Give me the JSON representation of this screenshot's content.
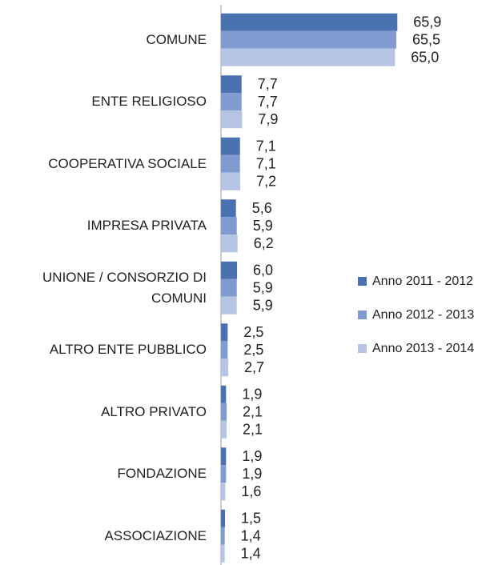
{
  "chart_data": {
    "type": "hbar",
    "categories": [
      "COMUNE",
      "ENTE RELIGIOSO",
      "COOPERATIVA SOCIALE",
      "IMPRESA PRIVATA",
      "UNIONE / CONSORZIO DI COMUNI",
      "ALTRO ENTE PUBBLICO",
      "ALTRO PRIVATO",
      "FONDAZIONE",
      "ASSOCIAZIONE"
    ],
    "series": [
      {
        "name": "Anno 2011 - 2012",
        "color": "#4a72b0",
        "values": [
          65.9,
          7.7,
          7.1,
          5.6,
          6.0,
          2.5,
          1.9,
          1.9,
          1.5
        ],
        "value_labels": [
          "65,9",
          "7,7",
          "7,1",
          "5,6",
          "6,0",
          "2,5",
          "1,9",
          "1,9",
          "1,5"
        ]
      },
      {
        "name": "Anno 2012 - 2013",
        "color": "#7f9bd0",
        "values": [
          65.5,
          7.7,
          7.1,
          5.9,
          5.9,
          2.5,
          2.1,
          1.9,
          1.4
        ],
        "value_labels": [
          "65,5",
          "7,7",
          "7,1",
          "5,9",
          "5,9",
          "2,5",
          "2,1",
          "1,9",
          "1,4"
        ]
      },
      {
        "name": "Anno 2013 - 2014",
        "color": "#b6c5e4",
        "values": [
          65.0,
          7.9,
          7.2,
          6.2,
          5.9,
          2.7,
          2.1,
          1.6,
          1.4
        ],
        "value_labels": [
          "65,0",
          "7,9",
          "7,2",
          "6,2",
          "5,9",
          "2,7",
          "2,1",
          "1,6",
          "1,4"
        ]
      }
    ],
    "xlim": [
      0,
      70
    ],
    "legend": "right"
  }
}
